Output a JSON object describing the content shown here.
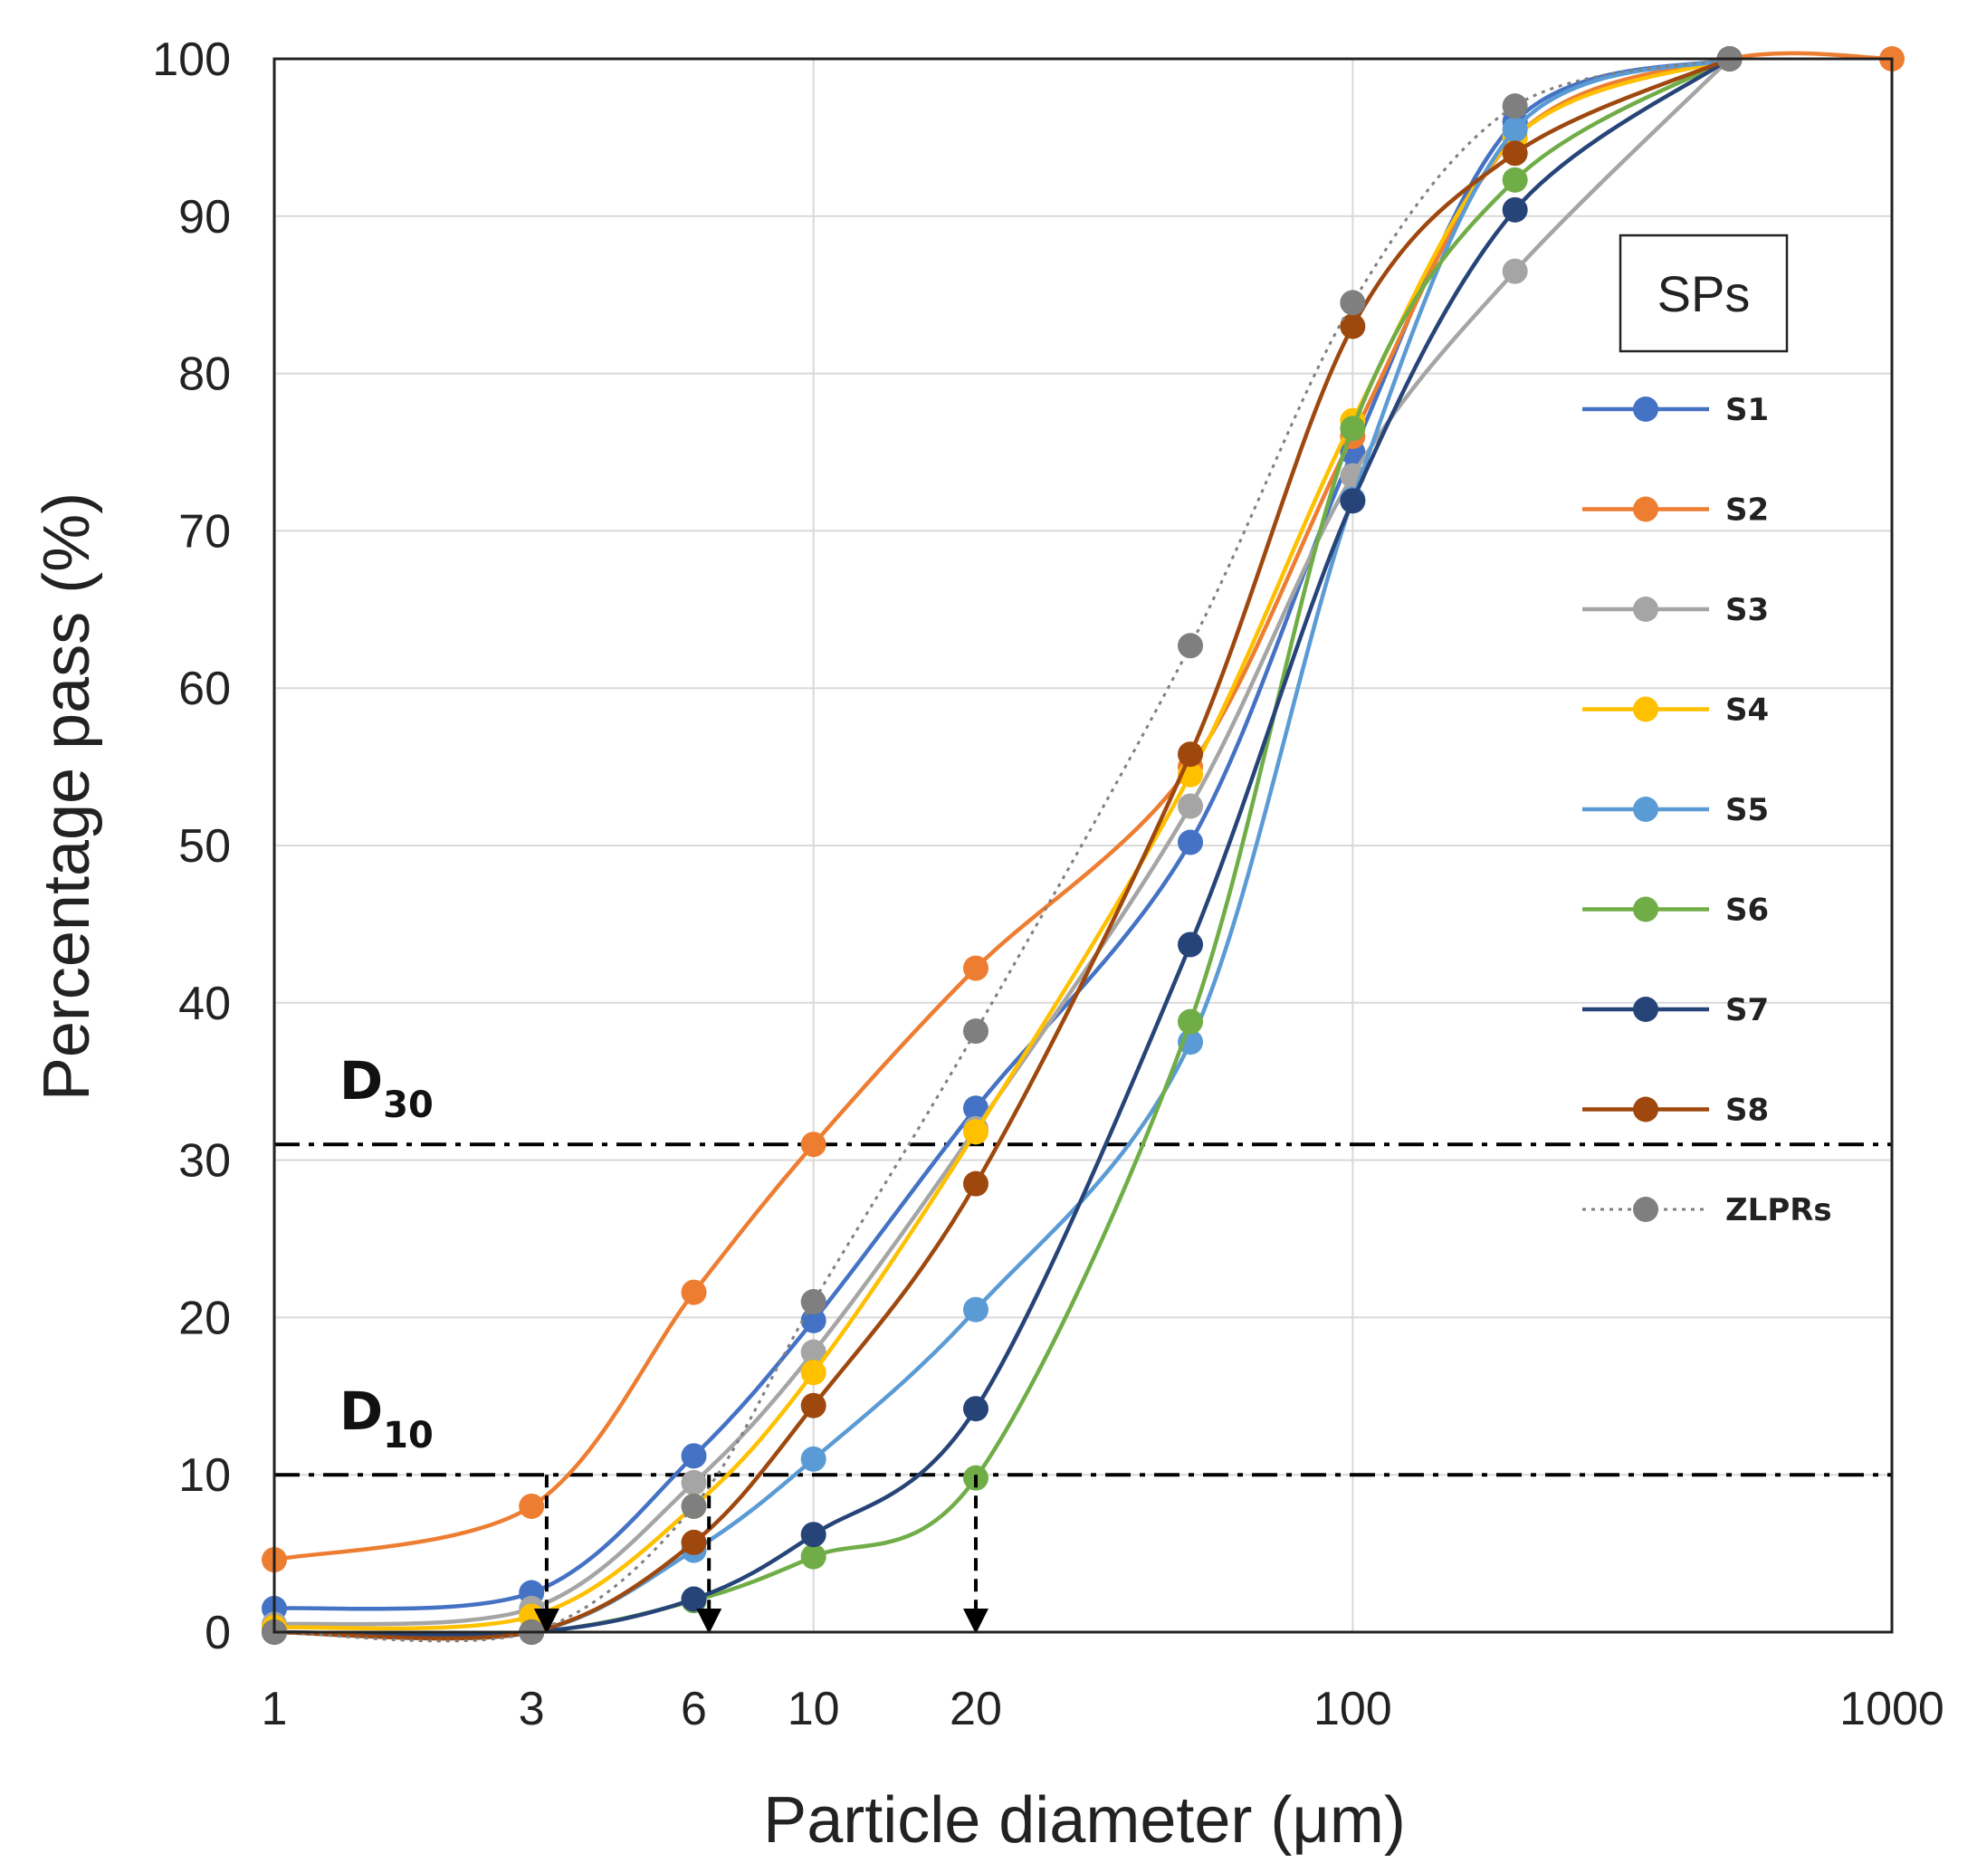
{
  "chart_data": {
    "type": "line",
    "title": "",
    "xlabel": "Particle diameter (μm)",
    "ylabel": "Percentage pass (%)",
    "xscale": "log",
    "xlim": [
      1,
      1000
    ],
    "ylim": [
      0,
      100
    ],
    "x_ticks": [
      1,
      3,
      6,
      10,
      20,
      100,
      1000
    ],
    "x_tick_labels": [
      "1",
      "3",
      "6",
      "10",
      "20",
      "100",
      "1000"
    ],
    "y_ticks": [
      0,
      10,
      20,
      30,
      40,
      50,
      60,
      70,
      80,
      90,
      100
    ],
    "y_tick_labels": [
      "0",
      "10",
      "20",
      "30",
      "40",
      "50",
      "60",
      "70",
      "80",
      "90",
      "100"
    ],
    "grid": true,
    "legend_title": "SPs",
    "legend_position": "right",
    "x": [
      1,
      3,
      6,
      10,
      20,
      50,
      100,
      200,
      500,
      1000
    ],
    "series": [
      {
        "name": "S1",
        "color": "#4472C4",
        "values": [
          1.5,
          2.5,
          11.2,
          19.8,
          33.3,
          50.2,
          75.0,
          96.0,
          100,
          null
        ]
      },
      {
        "name": "S2",
        "color": "#ED7D31",
        "values": [
          4.6,
          8.0,
          21.6,
          31.0,
          42.2,
          55.0,
          76.0,
          95.0,
          100,
          100
        ]
      },
      {
        "name": "S3",
        "color": "#A5A5A5",
        "values": [
          0.5,
          1.5,
          9.5,
          17.8,
          32.0,
          52.5,
          73.5,
          86.5,
          100,
          null
        ]
      },
      {
        "name": "S4",
        "color": "#FFC000",
        "values": [
          0.3,
          1.0,
          8.0,
          16.5,
          31.8,
          54.5,
          77.0,
          95.0,
          100,
          null
        ]
      },
      {
        "name": "S5",
        "color": "#5B9BD5",
        "values": [
          0.0,
          0.0,
          5.2,
          11.0,
          20.5,
          37.5,
          72.0,
          95.5,
          100,
          null
        ]
      },
      {
        "name": "S6",
        "color": "#70AD47",
        "values": [
          0.0,
          0.0,
          2.0,
          4.8,
          9.8,
          38.8,
          76.5,
          92.3,
          100,
          null
        ]
      },
      {
        "name": "S7",
        "color": "#264478",
        "values": [
          0.0,
          0.0,
          2.1,
          6.2,
          14.2,
          43.7,
          71.9,
          90.4,
          100,
          null
        ]
      },
      {
        "name": "S8",
        "color": "#9E480E",
        "values": [
          0.0,
          0.0,
          5.7,
          14.4,
          28.5,
          55.8,
          83.0,
          94.0,
          100,
          null
        ]
      },
      {
        "name": "ZLPRs",
        "color": "#7F7F7F",
        "dashed": true,
        "values": [
          0.0,
          0.0,
          8.0,
          21.0,
          38.2,
          62.7,
          84.5,
          97.0,
          100,
          null
        ]
      }
    ],
    "reference_lines": [
      {
        "label_main": "D",
        "label_sub": "30",
        "y": 31
      },
      {
        "label_main": "D",
        "label_sub": "10",
        "y": 10
      }
    ],
    "annotation_arrows": [
      {
        "x": 3.2,
        "from_y": 10,
        "to_y": 0
      },
      {
        "x": 6.4,
        "from_y": 10,
        "to_y": 0
      },
      {
        "x": 20,
        "from_y": 10,
        "to_y": 0
      }
    ]
  }
}
